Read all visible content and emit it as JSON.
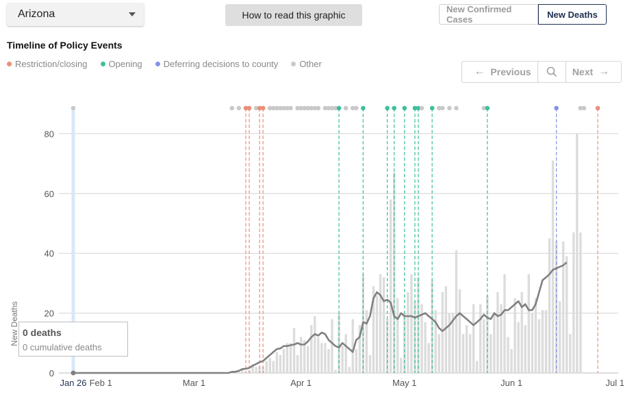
{
  "controls": {
    "state_select": "Arizona",
    "howto_label": "How to read this graphic",
    "toggle": {
      "cases_label": "New Confirmed Cases",
      "deaths_label": "New Deaths",
      "active": "deaths"
    }
  },
  "timeline": {
    "title": "Timeline of Policy Events",
    "legend": [
      {
        "label": "Restriction/closing",
        "color": "#e8907a"
      },
      {
        "label": "Opening",
        "color": "#3dbf9c"
      },
      {
        "label": "Deferring decisions to county",
        "color": "#8791e8"
      },
      {
        "label": "Other",
        "color": "#c9c9c9"
      }
    ],
    "pager": {
      "prev_label": "Previous",
      "next_label": "Next"
    }
  },
  "tooltip": {
    "main": "0 deaths",
    "sub": "0 cumulative deaths"
  },
  "chart_data": {
    "type": "bar",
    "ylabel": "New Deaths",
    "ylim": [
      0,
      90
    ],
    "y_ticks": [
      0,
      20,
      40,
      60,
      80
    ],
    "x_tick_labels": [
      "Jan 26",
      "Feb 1",
      "Mar 1",
      "Apr 1",
      "May 1",
      "Jun 1",
      "Jul 1"
    ],
    "x_tick_days": [
      0,
      6,
      35,
      66,
      96,
      127,
      157
    ],
    "highlight_day": 0,
    "start_offset": 46,
    "daily_values": [
      0,
      0,
      1,
      1,
      0,
      1,
      3,
      2,
      2,
      2,
      4,
      5,
      4,
      7,
      6,
      8,
      10,
      10,
      15,
      6,
      12,
      11,
      9,
      16,
      19,
      12,
      10,
      10,
      8,
      18,
      1,
      20,
      9,
      13,
      2,
      18,
      8,
      16,
      33,
      21,
      6,
      29,
      26,
      33,
      32,
      18,
      58,
      67,
      25,
      5,
      20,
      27,
      33,
      24,
      32,
      23,
      17,
      10,
      31,
      21,
      13,
      27,
      29,
      20,
      20,
      41,
      28,
      13,
      16,
      13,
      23,
      4,
      23,
      18,
      26,
      13,
      20,
      27,
      23,
      33,
      12,
      8,
      25,
      17,
      27,
      16,
      33,
      20,
      25,
      18,
      21,
      21,
      45,
      71,
      44,
      24,
      44,
      39,
      13,
      47,
      80,
      47
    ],
    "avg_values": [
      0.4,
      0.4,
      0.7,
      1.3,
      1.4,
      1.7,
      2.4,
      3,
      3.6,
      4,
      5,
      6,
      7,
      8,
      8.2,
      9,
      9,
      9.3,
      9.5,
      10,
      9.5,
      9.5,
      10.5,
      12,
      13,
      12.5,
      13.5,
      13,
      11,
      10,
      9,
      8.5,
      10,
      9,
      8,
      7,
      11,
      12,
      17,
      16.5,
      19,
      25,
      27,
      26,
      24,
      24.5,
      23.5,
      19,
      18,
      20,
      19,
      19,
      19,
      18.5,
      19,
      19.5,
      20,
      19,
      18,
      17,
      15,
      14,
      15,
      16,
      17.5,
      19,
      20,
      19,
      18,
      17,
      16,
      17,
      18,
      19.5,
      18.5,
      18,
      20,
      19,
      19.5,
      21,
      21,
      22,
      23,
      24,
      22,
      23,
      21,
      21,
      23,
      27,
      31,
      32,
      33,
      34.5,
      35,
      35.5,
      36,
      37
    ]
  },
  "policy_events": [
    {
      "day": 0,
      "type": "other"
    },
    {
      "day": 46,
      "type": "other"
    },
    {
      "day": 48,
      "type": "other"
    },
    {
      "day": 50,
      "type": "restriction"
    },
    {
      "day": 51,
      "type": "restriction"
    },
    {
      "day": 53,
      "type": "other"
    },
    {
      "day": 54,
      "type": "restriction"
    },
    {
      "day": 55,
      "type": "restriction"
    },
    {
      "day": 57,
      "type": "other"
    },
    {
      "day": 58,
      "type": "other"
    },
    {
      "day": 59,
      "type": "other"
    },
    {
      "day": 60,
      "type": "other"
    },
    {
      "day": 61,
      "type": "other"
    },
    {
      "day": 62,
      "type": "other"
    },
    {
      "day": 63,
      "type": "other"
    },
    {
      "day": 65,
      "type": "other"
    },
    {
      "day": 66,
      "type": "other"
    },
    {
      "day": 67,
      "type": "other"
    },
    {
      "day": 68,
      "type": "other"
    },
    {
      "day": 69,
      "type": "other"
    },
    {
      "day": 70,
      "type": "other"
    },
    {
      "day": 71,
      "type": "other"
    },
    {
      "day": 73,
      "type": "other"
    },
    {
      "day": 74,
      "type": "other"
    },
    {
      "day": 75,
      "type": "other"
    },
    {
      "day": 76,
      "type": "other"
    },
    {
      "day": 77,
      "type": "other"
    },
    {
      "day": 79,
      "type": "other"
    },
    {
      "day": 81,
      "type": "other"
    },
    {
      "day": 82,
      "type": "other"
    },
    {
      "day": 77,
      "type": "opening"
    },
    {
      "day": 84,
      "type": "opening"
    },
    {
      "day": 91,
      "type": "opening"
    },
    {
      "day": 93,
      "type": "opening"
    },
    {
      "day": 96,
      "type": "opening"
    },
    {
      "day": 99,
      "type": "opening"
    },
    {
      "day": 100,
      "type": "opening"
    },
    {
      "day": 101,
      "type": "other"
    },
    {
      "day": 104,
      "type": "opening"
    },
    {
      "day": 106,
      "type": "other"
    },
    {
      "day": 107,
      "type": "other"
    },
    {
      "day": 109,
      "type": "other"
    },
    {
      "day": 111,
      "type": "other"
    },
    {
      "day": 119,
      "type": "other"
    },
    {
      "day": 120,
      "type": "opening"
    },
    {
      "day": 140,
      "type": "deferring"
    },
    {
      "day": 147,
      "type": "other"
    },
    {
      "day": 148,
      "type": "other"
    },
    {
      "day": 152,
      "type": "restriction"
    }
  ]
}
